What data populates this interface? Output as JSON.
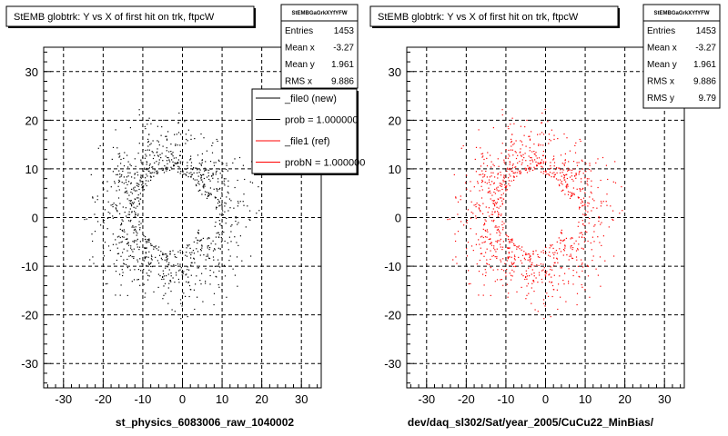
{
  "chart_data": [
    {
      "type": "scatter",
      "title": "StEMB globtrk: Y vs X of first hit on trk, ftpcW",
      "xlabel": "st_physics_6083006_raw_1040002",
      "ylabel": "",
      "xlim": [
        -35,
        35
      ],
      "ylim": [
        -35,
        35
      ],
      "x_ticks": [
        -30,
        -20,
        -10,
        0,
        10,
        20,
        30
      ],
      "y_ticks": [
        30,
        20,
        10,
        0,
        -10,
        -20,
        -30
      ],
      "grid": true,
      "marker_color": "#000000",
      "stats": {
        "header": "StEMBGaGrkXYfYFW",
        "rows": [
          {
            "label": "Entries",
            "value": "1453"
          },
          {
            "label": "Mean x",
            "value": "-3.27"
          },
          {
            "label": "Mean y",
            "value": "1.961"
          },
          {
            "label": "RMS x",
            "value": "9.886"
          }
        ]
      },
      "legend": [
        {
          "label": "_file0 (new)",
          "color": "#000000"
        },
        {
          "label": "prob = 1.000000",
          "color": "#000000"
        },
        {
          "label": "_file1 (ref)",
          "color": "#ff0000"
        },
        {
          "label": "probN = 1.000000",
          "color": "#ff0000"
        }
      ]
    },
    {
      "type": "scatter",
      "title": "StEMB globtrk: Y vs X of first hit on trk, ftpcW",
      "xlabel": "dev/daq_sl302/Sat/year_2005/CuCu22_MinBias/",
      "ylabel": "",
      "xlim": [
        -35,
        35
      ],
      "ylim": [
        -35,
        35
      ],
      "x_ticks": [
        -30,
        -20,
        -10,
        0,
        10,
        20,
        30
      ],
      "y_ticks": [
        30,
        20,
        10,
        0,
        -10,
        -20,
        -30
      ],
      "grid": true,
      "marker_color": "#ff0000",
      "stats": {
        "header": "StEMBGaGrkXYfYFW",
        "rows": [
          {
            "label": "Entries",
            "value": "1453"
          },
          {
            "label": "Mean x",
            "value": "-3.27"
          },
          {
            "label": "Mean y",
            "value": "1.961"
          },
          {
            "label": "RMS x",
            "value": "9.886"
          },
          {
            "label": "RMS y",
            "value": "9.79"
          }
        ]
      }
    }
  ]
}
